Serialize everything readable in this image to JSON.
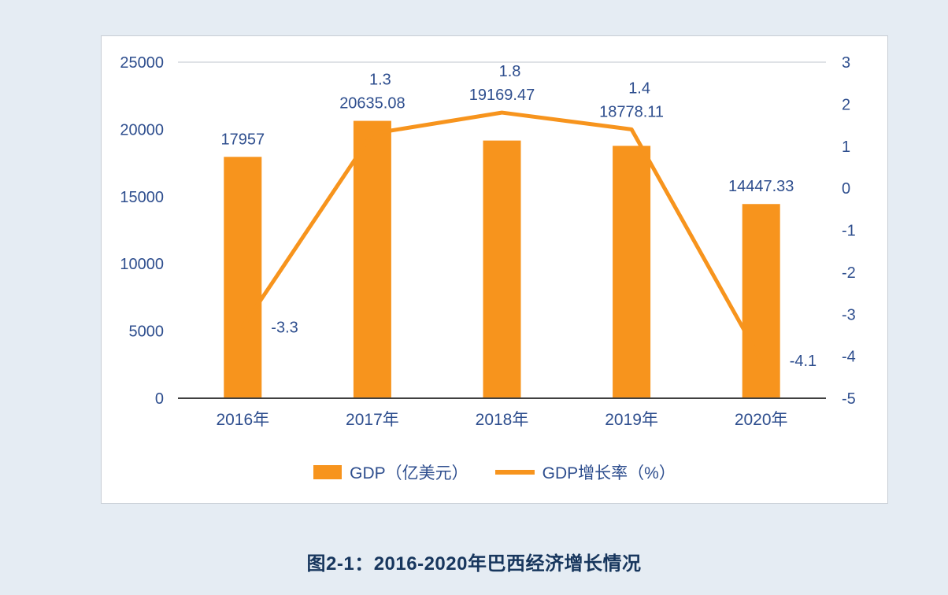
{
  "page": {
    "caption": "图2-1：2016-2020年巴西经济增长情况"
  },
  "chart_data": {
    "type": "bar",
    "subtype": "combo-bar-line",
    "title": "",
    "categories": [
      "2016年",
      "2017年",
      "2018年",
      "2019年",
      "2020年"
    ],
    "series": [
      {
        "name": "GDP（亿美元）",
        "type": "bar",
        "axis": "left",
        "values": [
          17957,
          20635.08,
          19169.47,
          18778.11,
          14447.33
        ],
        "labels": [
          "17957",
          "20635.08",
          "19169.47",
          "18778.11",
          "14447.33"
        ]
      },
      {
        "name": "GDP增长率（%）",
        "type": "line",
        "axis": "right",
        "values": [
          -3.3,
          1.3,
          1.8,
          1.4,
          -4.1
        ],
        "labels": [
          "-3.3",
          "1.3",
          "1.8",
          "1.4",
          "-4.1"
        ]
      }
    ],
    "left_axis": {
      "min": 0,
      "max": 25000,
      "ticks": [
        0,
        5000,
        10000,
        15000,
        20000,
        25000
      ]
    },
    "right_axis": {
      "min": -5,
      "max": 3,
      "ticks": [
        3,
        2,
        1,
        0,
        -1,
        -2,
        -3,
        -4,
        -5
      ]
    },
    "legend": [
      "GDP（亿美元）",
      "GDP增长率（%）"
    ],
    "legend_position": "bottom",
    "grid": "top-line-only",
    "colors": {
      "bar": "#F7941D",
      "line": "#F7941D",
      "text": "#2E4E8E",
      "caption": "#17365D",
      "axis_line": "#404040",
      "grid_line": "#BFC5CC"
    }
  }
}
